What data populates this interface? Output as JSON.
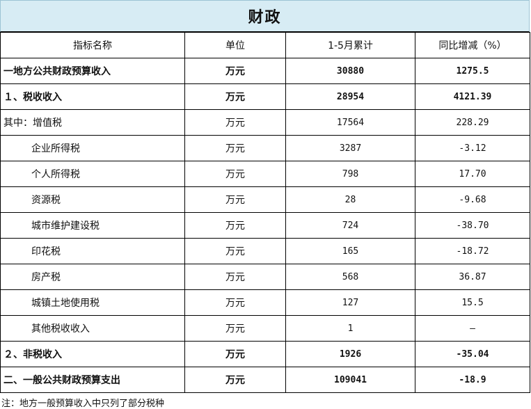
{
  "title": "财政",
  "headers": [
    "指标名称",
    "单位",
    "1-5月累计",
    "同比增减（%）"
  ],
  "rows": [
    {
      "name": "一地方公共财政预算收入",
      "unit": "万元",
      "value": "30880",
      "change": "1275.5",
      "bold": true,
      "indent": false
    },
    {
      "name": "１、税收收入",
      "unit": "万元",
      "value": "28954",
      "change": "4121.39",
      "bold": true,
      "indent": false
    },
    {
      "name": "其中：增值税",
      "unit": "万元",
      "value": "17564",
      "change": "228.29",
      "bold": false,
      "indent": false
    },
    {
      "name": "企业所得税",
      "unit": "万元",
      "value": "3287",
      "change": "-3.12",
      "bold": false,
      "indent": true
    },
    {
      "name": "个人所得税",
      "unit": "万元",
      "value": "798",
      "change": "17.70",
      "bold": false,
      "indent": true
    },
    {
      "name": "资源税",
      "unit": "万元",
      "value": "28",
      "change": "-9.68",
      "bold": false,
      "indent": true
    },
    {
      "name": "城市维护建设税",
      "unit": "万元",
      "value": "724",
      "change": "-38.70",
      "bold": false,
      "indent": true
    },
    {
      "name": "印花税",
      "unit": "万元",
      "value": "165",
      "change": "-18.72",
      "bold": false,
      "indent": true
    },
    {
      "name": "房产税",
      "unit": "万元",
      "value": "568",
      "change": "36.87",
      "bold": false,
      "indent": true
    },
    {
      "name": "城镇土地使用税",
      "unit": "万元",
      "value": "127",
      "change": "15.5",
      "bold": false,
      "indent": true
    },
    {
      "name": "其他税收收入",
      "unit": "万元",
      "value": "1",
      "change": "—",
      "bold": false,
      "indent": true
    },
    {
      "name": "２、非税收入",
      "unit": "万元",
      "value": "1926",
      "change": "-35.04",
      "bold": true,
      "indent": false
    },
    {
      "name": "二、一般公共财政预算支出",
      "unit": "万元",
      "value": "109041",
      "change": "-18.9",
      "bold": true,
      "indent": false
    }
  ],
  "note": "注：地方一般预算收入中只列了部分税种"
}
